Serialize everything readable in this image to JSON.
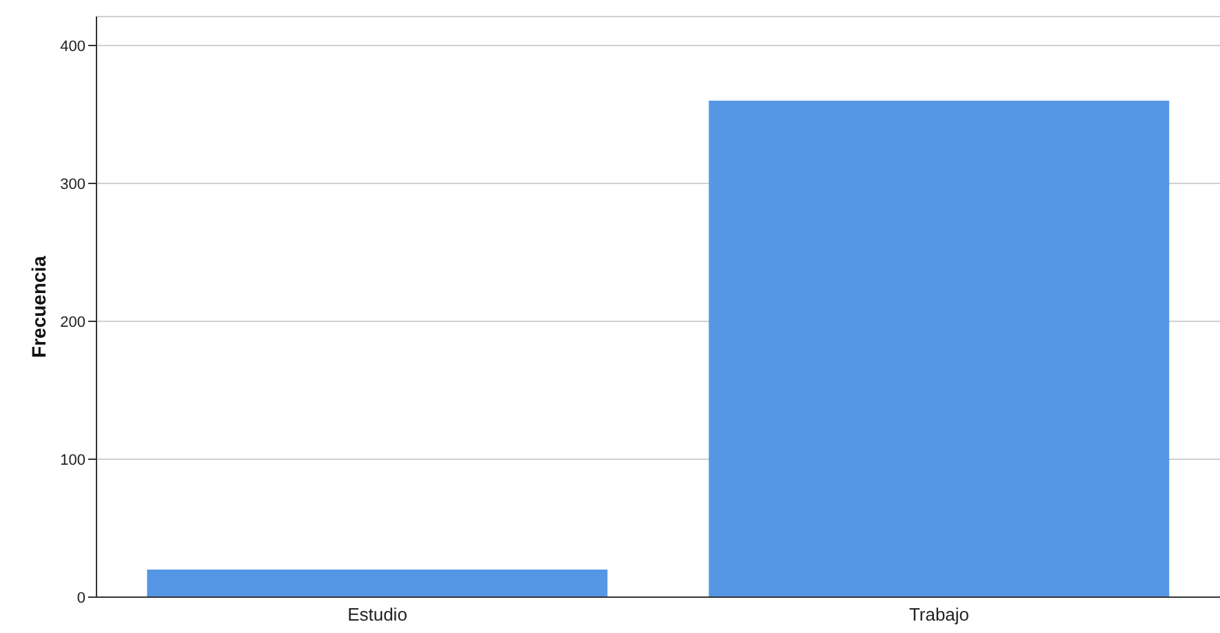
{
  "chart_data": {
    "type": "bar",
    "ylabel": "Frecuencia",
    "categories": [
      "Estudio",
      "Trabajo"
    ],
    "values": [
      20,
      360
    ],
    "color": "#5597e5",
    "ylim": [
      0,
      421
    ],
    "yticks": [
      0,
      100,
      200,
      300,
      400
    ],
    "grid": "y"
  }
}
